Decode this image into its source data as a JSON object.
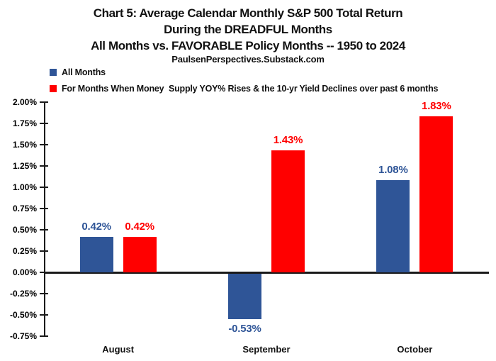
{
  "header": {
    "title_line1": "Chart 5: Average Calendar Monthly S&P 500 Total Return",
    "title_line2": "During the DREADFUL Months",
    "title_line3": "All Months vs. FAVORABLE Policy Months -- 1950 to 2024",
    "source": "PaulsenPerspectives.Substack.com"
  },
  "legend": {
    "items": [
      {
        "label": "All Months",
        "color": "#2F5597"
      },
      {
        "label": "For Months When Money  Supply YOY% Rises & the 10-yr Yield Declines over past 6 months",
        "color": "#FF0000"
      }
    ]
  },
  "chart_data": {
    "type": "bar",
    "title": "Chart 5: Average Calendar Monthly S&P 500 Total Return During the DREADFUL Months, All Months vs. FAVORABLE Policy Months -- 1950 to 2024",
    "categories": [
      "August",
      "September",
      "October"
    ],
    "series": [
      {
        "name": "All Months",
        "color": "#2F5597",
        "values": [
          0.42,
          -0.53,
          1.08
        ],
        "labels": [
          "0.42%",
          "-0.53%",
          "1.08%"
        ]
      },
      {
        "name": "For Months When Money  Supply YOY% Rises & the 10-yr Yield Declines over past 6 months",
        "color": "#FF0000",
        "values": [
          0.42,
          1.43,
          1.83
        ],
        "labels": [
          "0.42%",
          "1.43%",
          "1.83%"
        ]
      }
    ],
    "xlabel": "",
    "ylabel": "",
    "ylim": [
      -0.75,
      2.0
    ],
    "ytick_step": 0.25,
    "y_ticks": [
      "2.00%",
      "1.75%",
      "1.50%",
      "1.25%",
      "1.00%",
      "0.75%",
      "0.50%",
      "0.25%",
      "0.00%",
      "-0.25%",
      "-0.50%",
      "-0.75%"
    ],
    "grid": false,
    "legend_position": "top-left"
  }
}
